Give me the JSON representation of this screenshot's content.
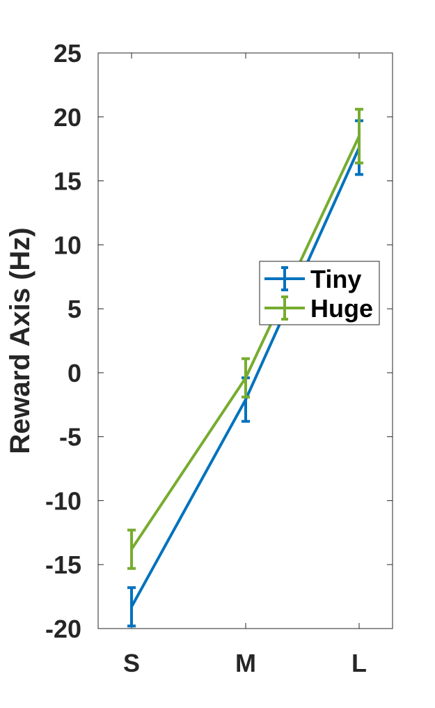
{
  "chart_data": {
    "type": "line",
    "categories": [
      "S",
      "M",
      "L"
    ],
    "ylabel": "Reward Axis (Hz)",
    "ylim": [
      -20,
      25
    ],
    "yticks": [
      -20,
      -15,
      -10,
      -5,
      0,
      5,
      10,
      15,
      20,
      25
    ],
    "grid": false,
    "legend_position": "right",
    "series": [
      {
        "name": "Tiny",
        "color": "#0072BD",
        "values": [
          -18.3,
          -2.1,
          17.6
        ],
        "error_low": [
          1.5,
          1.7,
          2.1
        ],
        "error_high": [
          1.5,
          1.7,
          2.1
        ]
      },
      {
        "name": "Huge",
        "color": "#77AC30",
        "values": [
          -13.8,
          -0.4,
          18.5
        ],
        "error_low": [
          1.5,
          1.5,
          2.1
        ],
        "error_high": [
          1.5,
          1.5,
          2.1
        ]
      }
    ]
  }
}
